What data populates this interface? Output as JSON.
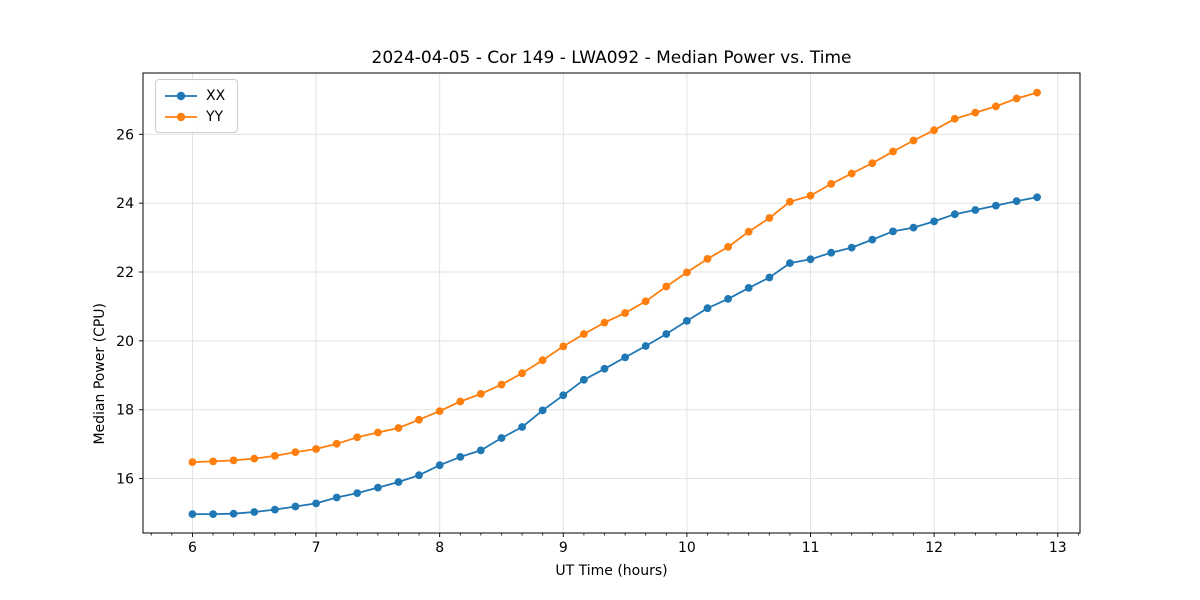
{
  "chart_data": {
    "type": "line",
    "title": "2024-04-05 - Cor 149 - LWA092 - Median Power vs. Time",
    "xlabel": "UT Time (hours)",
    "ylabel": "Median Power (CPU)",
    "xlim": [
      5.6,
      13.18
    ],
    "ylim": [
      14.42,
      27.78
    ],
    "xticks": [
      6,
      7,
      8,
      9,
      10,
      11,
      12,
      13
    ],
    "yticks": [
      16,
      18,
      20,
      22,
      24,
      26
    ],
    "x_minor_step": 0.166667,
    "grid": true,
    "grid_color": "#e0e0e0",
    "legend_position": "upper-left",
    "x": [
      6.0,
      6.167,
      6.333,
      6.5,
      6.667,
      6.833,
      7.0,
      7.167,
      7.333,
      7.5,
      7.667,
      7.833,
      8.0,
      8.167,
      8.333,
      8.5,
      8.667,
      8.833,
      9.0,
      9.167,
      9.333,
      9.5,
      9.667,
      9.833,
      10.0,
      10.167,
      10.333,
      10.5,
      10.667,
      10.833,
      11.0,
      11.167,
      11.333,
      11.5,
      11.667,
      11.833,
      12.0,
      12.167,
      12.333,
      12.5,
      12.667,
      12.833
    ],
    "series": [
      {
        "name": "XX",
        "color": "#1f77b4",
        "values": [
          14.97,
          14.97,
          14.98,
          15.03,
          15.1,
          15.19,
          15.28,
          15.45,
          15.58,
          15.74,
          15.9,
          16.1,
          16.39,
          16.63,
          16.82,
          17.18,
          17.5,
          17.98,
          18.42,
          18.87,
          19.19,
          19.52,
          19.85,
          20.2,
          20.58,
          20.95,
          21.22,
          21.54,
          21.84,
          22.26,
          22.37,
          22.56,
          22.71,
          22.94,
          23.18,
          23.29,
          23.47,
          23.68,
          23.8,
          23.93,
          24.06,
          24.17
        ]
      },
      {
        "name": "YY",
        "color": "#ff7f0e",
        "values": [
          16.48,
          16.5,
          16.53,
          16.58,
          16.66,
          16.77,
          16.86,
          17.01,
          17.2,
          17.34,
          17.47,
          17.71,
          17.96,
          18.24,
          18.46,
          18.73,
          19.06,
          19.44,
          19.84,
          20.2,
          20.53,
          20.81,
          21.15,
          21.58,
          21.99,
          22.38,
          22.73,
          23.17,
          23.57,
          24.04,
          24.22,
          24.56,
          24.86,
          25.16,
          25.5,
          25.82,
          26.12,
          26.45,
          26.63,
          26.81,
          27.04,
          27.21
        ]
      }
    ]
  }
}
